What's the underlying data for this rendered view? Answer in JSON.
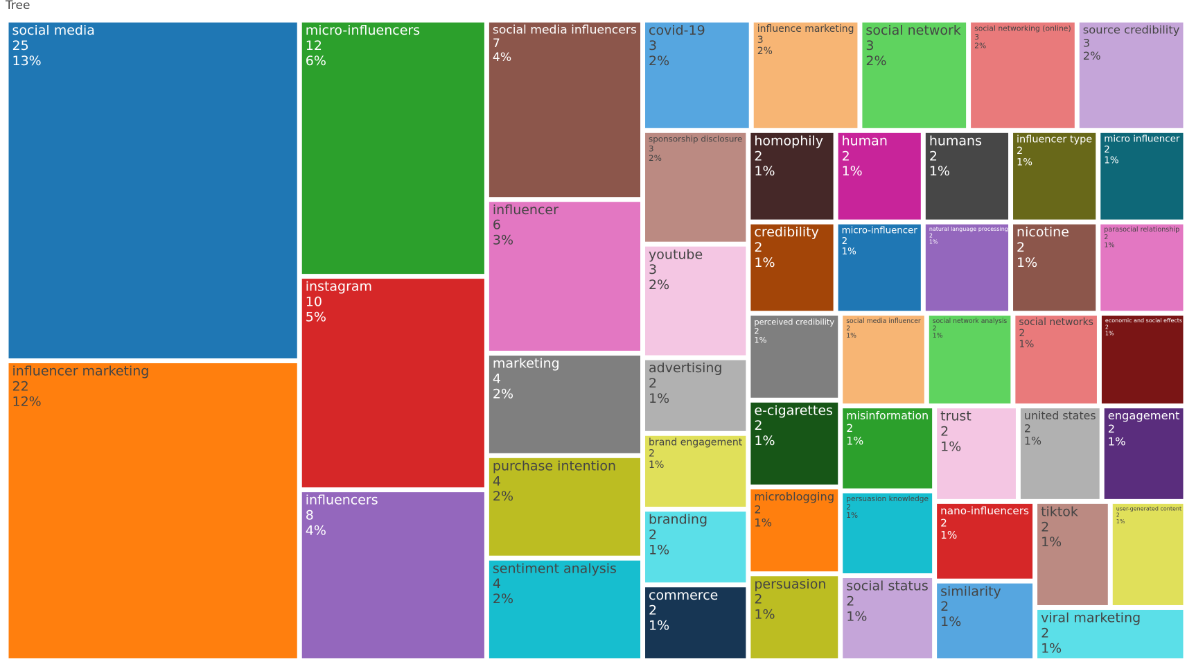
{
  "chart_data": {
    "type": "treemap",
    "title": "Tree",
    "categories": [
      "social media",
      "influencer marketing",
      "micro-influencers",
      "instagram",
      "influencers",
      "social media influencers",
      "influencer",
      "marketing",
      "purchase intention",
      "sentiment analysis",
      "covid-19",
      "influence marketing",
      "social network",
      "social networking (online)",
      "source credibility",
      "sponsorship disclosure",
      "youtube",
      "advertising",
      "brand engagement",
      "branding",
      "commerce",
      "homophily",
      "human",
      "humans",
      "influencer type",
      "micro influencer",
      "credibility",
      "micro-influencer",
      "natural language processing",
      "nicotine",
      "parasocial relationship",
      "perceived credibility",
      "e-cigarettes",
      "microblogging",
      "persuasion",
      "social media influencer",
      "social network analysis",
      "social networks",
      "economic and social effects",
      "misinformation",
      "persuasion knowledge",
      "social status",
      "trust",
      "united states",
      "engagement",
      "nano-influencers",
      "similarity",
      "tiktok",
      "user-generated content",
      "viral marketing"
    ],
    "values": [
      25,
      22,
      12,
      10,
      8,
      7,
      6,
      4,
      4,
      4,
      3,
      3,
      3,
      3,
      3,
      3,
      3,
      2,
      2,
      2,
      2,
      2,
      2,
      2,
      2,
      2,
      2,
      2,
      2,
      2,
      2,
      2,
      2,
      2,
      2,
      2,
      2,
      2,
      2,
      2,
      2,
      2,
      2,
      2,
      2,
      2,
      2,
      2,
      2,
      2
    ],
    "percentages": [
      "13%",
      "12%",
      "6%",
      "5%",
      "4%",
      "4%",
      "3%",
      "2%",
      "2%",
      "2%",
      "2%",
      "2%",
      "2%",
      "2%",
      "2%",
      "2%",
      "2%",
      "1%",
      "1%",
      "1%",
      "1%",
      "1%",
      "1%",
      "1%",
      "1%",
      "1%",
      "1%",
      "1%",
      "1%",
      "1%",
      "1%",
      "1%",
      "1%",
      "1%",
      "1%",
      "1%",
      "1%",
      "1%",
      "1%",
      "1%",
      "1%",
      "1%",
      "1%",
      "1%",
      "1%",
      "1%",
      "1%",
      "1%",
      "1%",
      "1%"
    ],
    "colors": [
      "#1f77b4",
      "#ff7f0e",
      "#2ca02c",
      "#d62728",
      "#9467bd",
      "#8c564b",
      "#e377c2",
      "#7f7f7f",
      "#bcbd22",
      "#17becf",
      "#56a6e0",
      "#f7b574",
      "#5fd35f",
      "#e97a7b",
      "#c5a5d9",
      "#bb8a82",
      "#f4c6e3",
      "#b1b1b1",
      "#e0e05a",
      "#5bdfe8",
      "#173654",
      "#452828",
      "#c8249a",
      "#474747",
      "#686819",
      "#0e6878",
      "#a34508",
      "#1f77b4",
      "#9467bd",
      "#8c564b",
      "#e377c2",
      "#7f7f7f",
      "#175617",
      "#ff7f0e",
      "#bcbd22",
      "#f7b574",
      "#5fd35f",
      "#e97a7b",
      "#7a1515",
      "#2ca02c",
      "#17becf",
      "#c5a5d9",
      "#f4c6e3",
      "#b1b1b1",
      "#5a2d7d",
      "#d62728",
      "#56a6e0",
      "#bb8a82",
      "#e0e05a",
      "#5bdfe8"
    ]
  }
}
